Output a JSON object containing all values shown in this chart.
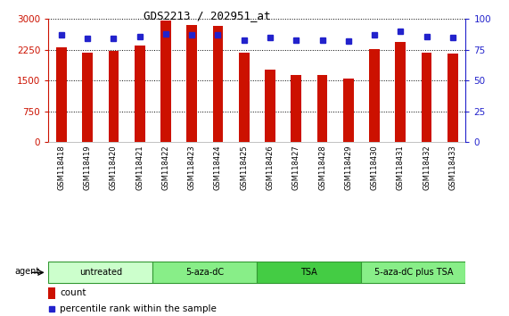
{
  "title": "GDS2213 / 202951_at",
  "samples": [
    "GSM118418",
    "GSM118419",
    "GSM118420",
    "GSM118421",
    "GSM118422",
    "GSM118423",
    "GSM118424",
    "GSM118425",
    "GSM118426",
    "GSM118427",
    "GSM118428",
    "GSM118429",
    "GSM118430",
    "GSM118431",
    "GSM118432",
    "GSM118433"
  ],
  "counts": [
    2320,
    2180,
    2230,
    2350,
    2970,
    2860,
    2840,
    2180,
    1760,
    1630,
    1630,
    1540,
    2270,
    2430,
    2170,
    2150
  ],
  "percentiles": [
    87,
    84,
    84,
    86,
    88,
    87,
    87,
    83,
    85,
    83,
    83,
    82,
    87,
    90,
    86,
    85
  ],
  "groups": [
    {
      "label": "untreated",
      "start": 0,
      "end": 4,
      "color": "#ccffcc"
    },
    {
      "label": "5-aza-dC",
      "start": 4,
      "end": 8,
      "color": "#88ee88"
    },
    {
      "label": "TSA",
      "start": 8,
      "end": 12,
      "color": "#44cc44"
    },
    {
      "label": "5-aza-dC plus TSA",
      "start": 12,
      "end": 16,
      "color": "#88ee88"
    }
  ],
  "bar_color": "#cc1100",
  "dot_color": "#2222cc",
  "bg_color": "#ffffff",
  "plot_bg": "#ffffff",
  "ylim_left": [
    0,
    3000
  ],
  "ylim_right": [
    0,
    100
  ],
  "yticks_left": [
    0,
    750,
    1500,
    2250,
    3000
  ],
  "yticks_right": [
    0,
    25,
    50,
    75,
    100
  ],
  "left_tick_color": "#cc1100",
  "right_tick_color": "#2222cc",
  "grid_color": "#000000",
  "legend_count_color": "#cc1100",
  "legend_pct_color": "#2222cc",
  "title_fontsize": 9,
  "bar_width": 0.4
}
